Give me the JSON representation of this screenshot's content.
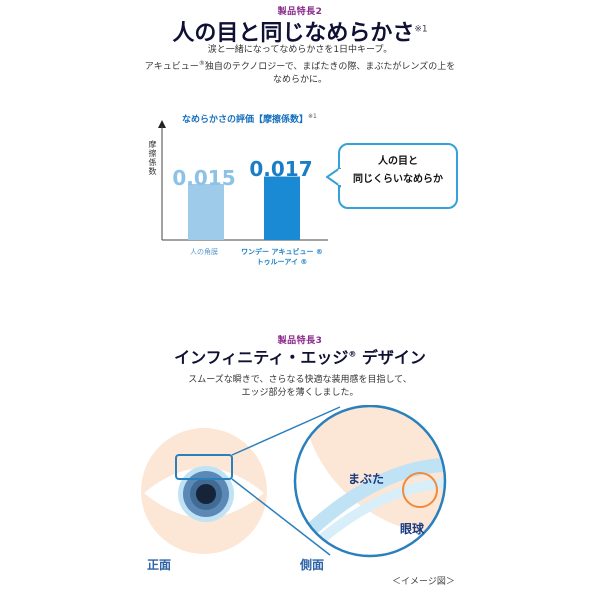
{
  "feature2": {
    "label": "製品特長2",
    "title": "人の目と同じなめらかさ",
    "title_note": "※1",
    "desc_line1": "涙と一緒になってなめらかさを1日中キープ。",
    "desc_line2a": "アキュビュー",
    "desc_line2_mark": "®",
    "desc_line2b": "独自のテクノロジーで、まばたきの際、まぶたがレンズの上を",
    "desc_line3": "なめらかに。"
  },
  "chart_data": {
    "type": "bar",
    "title": "なめらかさの評価【摩擦係数】",
    "title_note": "※1",
    "ylabel": "摩擦係数",
    "categories": [
      "人の角膜",
      "ワンデー アキュビュー® トゥルーアイ®"
    ],
    "category_lines": [
      [
        "人の角膜"
      ],
      [
        "ワンデー アキュビュー ®",
        "トゥルーアイ ®"
      ]
    ],
    "values": [
      0.015,
      0.017
    ],
    "value_labels": [
      "0.015",
      "0.017"
    ],
    "ylim": [
      0,
      0.03
    ],
    "colors": [
      "#9ecbea",
      "#1a8ad4"
    ],
    "callout_line1": "人の目と",
    "callout_line2": "同じくらいなめらか"
  },
  "feature3": {
    "label": "製品特長3",
    "title_a": "インフィニティ・エッジ",
    "title_mark": "®",
    "title_b": " デザイン",
    "desc_line1": "スムーズな瞬きで、さらなる快適な装用感を目指して、",
    "desc_line2": "エッジ部分を薄くしました。"
  },
  "illustration": {
    "front_label": "正面",
    "side_label": "側面",
    "eyelid_label": "まぶた",
    "eyeball_label": "眼球",
    "image_note": "＜イメージ図＞",
    "colors": {
      "skin": "#fce6d6",
      "iris": "#5b88b5",
      "frame": "#2a7fbd",
      "ring": "#f08a3c",
      "lens": "#bfe3f5"
    }
  }
}
